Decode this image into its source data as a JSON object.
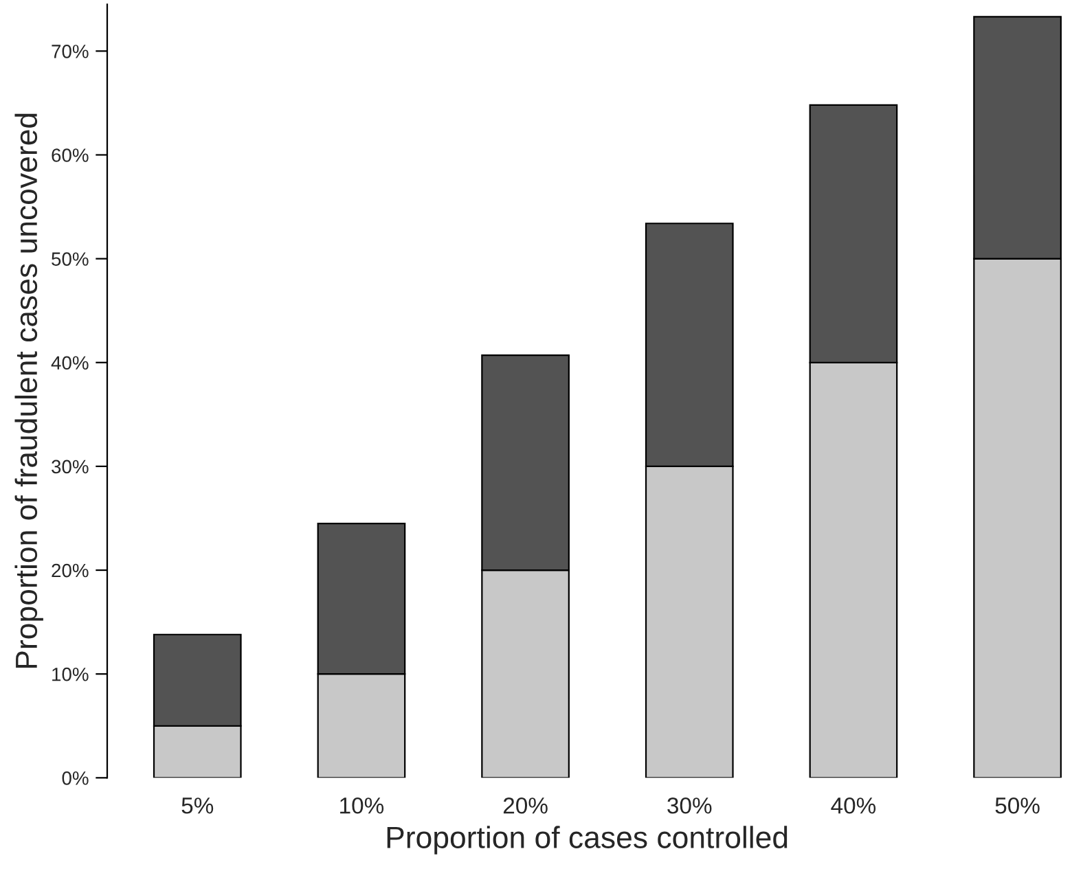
{
  "chart_data": {
    "type": "bar",
    "stacked": true,
    "xlabel": "Proportion of cases controlled",
    "ylabel": "Proportion of fraudulent cases uncovered",
    "categories": [
      "5%",
      "10%",
      "20%",
      "30%",
      "40%",
      "50%"
    ],
    "series": [
      {
        "color": "#c8c8c8",
        "values": [
          5.0,
          10.0,
          20.0,
          30.0,
          40.0,
          50.0
        ]
      },
      {
        "color": "#535353",
        "values": [
          8.8,
          14.5,
          20.7,
          23.4,
          24.8,
          23.3
        ]
      }
    ],
    "ylim": [
      0,
      74.5
    ],
    "yticks": [
      {
        "value": 0,
        "label": "0%"
      },
      {
        "value": 10,
        "label": "10%"
      },
      {
        "value": 20,
        "label": "20%"
      },
      {
        "value": 30,
        "label": "30%"
      },
      {
        "value": 40,
        "label": "40%"
      },
      {
        "value": 50,
        "label": "50%"
      },
      {
        "value": 60,
        "label": "60%"
      },
      {
        "value": 70,
        "label": "70%"
      }
    ],
    "grid": false
  }
}
